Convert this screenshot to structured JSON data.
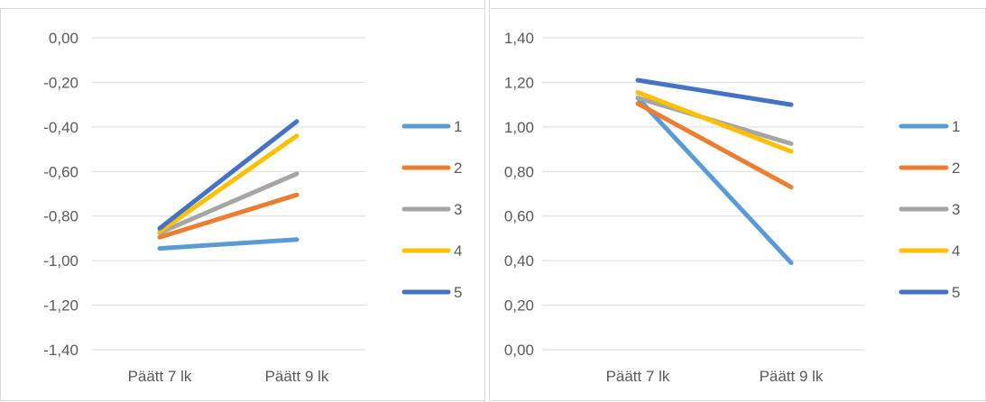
{
  "chart_data": [
    {
      "type": "line",
      "title": "",
      "xlabel": "",
      "ylabel": "",
      "categories": [
        "Päätt 7 lk",
        "Päätt 9 lk"
      ],
      "y_ticks": [
        "0,00",
        "-0,20",
        "-0,40",
        "-0,60",
        "-0,80",
        "-1,00",
        "-1,20",
        "-1,40"
      ],
      "ylim": [
        -1.4,
        0.0
      ],
      "grid": "horizontal",
      "legend": "right",
      "series": [
        {
          "name": "1",
          "values": [
            -0.945,
            -0.905
          ],
          "color": "#5b9bd5"
        },
        {
          "name": "2",
          "values": [
            -0.895,
            -0.705
          ],
          "color": "#ed7d31"
        },
        {
          "name": "3",
          "values": [
            -0.875,
            -0.61
          ],
          "color": "#a5a5a5"
        },
        {
          "name": "4",
          "values": [
            -0.87,
            -0.44
          ],
          "color": "#ffc000"
        },
        {
          "name": "5",
          "values": [
            -0.855,
            -0.375
          ],
          "color": "#4472c4"
        }
      ]
    },
    {
      "type": "line",
      "title": "",
      "xlabel": "",
      "ylabel": "",
      "categories": [
        "Päätt 7 lk",
        "Päätt 9 lk"
      ],
      "y_ticks": [
        "1,40",
        "1,20",
        "1,00",
        "0,80",
        "0,60",
        "0,40",
        "0,20",
        "0,00"
      ],
      "ylim": [
        0.0,
        1.4
      ],
      "grid": "horizontal",
      "legend": "right",
      "series": [
        {
          "name": "1",
          "values": [
            1.13,
            0.39
          ],
          "color": "#5b9bd5"
        },
        {
          "name": "2",
          "values": [
            1.105,
            0.73
          ],
          "color": "#ed7d31"
        },
        {
          "name": "3",
          "values": [
            1.13,
            0.925
          ],
          "color": "#a5a5a5"
        },
        {
          "name": "4",
          "values": [
            1.155,
            0.89
          ],
          "color": "#ffc000"
        },
        {
          "name": "5",
          "values": [
            1.21,
            1.1
          ],
          "color": "#4472c4"
        }
      ]
    }
  ]
}
